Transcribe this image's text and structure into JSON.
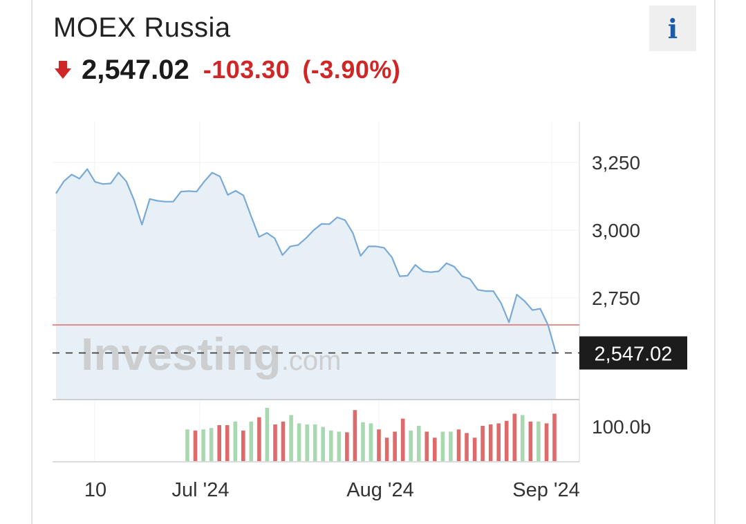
{
  "header": {
    "title": "MOEX Russia",
    "price": "2,547.02",
    "change": "-103.30",
    "change_pct": "(-3.90%)",
    "info_label": "i",
    "direction_icon": "arrow-down-icon"
  },
  "watermark": {
    "main": "Investing",
    "suffix": ".com"
  },
  "colors": {
    "down": "#cf2727",
    "line": "#7aaad4",
    "area": "#e7eff7",
    "volume_up": "#a8d8b0",
    "volume_down": "#de6b6b",
    "prev_close_line": "#e46868",
    "last_price_badge": "#1c1c1c"
  },
  "chart_data": {
    "type": "area",
    "title": "MOEX Russia",
    "x_ticks": [
      "10",
      "Jul '24",
      "Aug '24",
      "Sep '24"
    ],
    "y_ticks": [
      "3,250",
      "3,000",
      "2,750"
    ],
    "volume_tick": "100.0b",
    "last_price_label": "2,547.02",
    "last_price": 2547.02,
    "previous_close": 2650.32,
    "ylim": [
      2375,
      3400
    ],
    "grid": true,
    "series": [
      {
        "values": [
          3135,
          3180,
          3205,
          3190,
          3225,
          3178,
          3170,
          3172,
          3212,
          3180,
          3110,
          3020,
          3115,
          3108,
          3105,
          3105,
          3142,
          3144,
          3142,
          3180,
          3212,
          3198,
          3130,
          3145,
          3128,
          3050,
          2975,
          2990,
          2970,
          2908,
          2940,
          2945,
          2970,
          3000,
          3023,
          3022,
          3047,
          3037,
          2990,
          2905,
          2940,
          2940,
          2935,
          2900,
          2830,
          2832,
          2872,
          2848,
          2845,
          2848,
          2878,
          2865,
          2830,
          2820,
          2780,
          2775,
          2775,
          2730,
          2660,
          2762,
          2738,
          2705,
          2710,
          2650,
          2547
        ]
      }
    ],
    "volume": [
      {
        "dir": "up",
        "value": 0.88
      },
      {
        "dir": "down",
        "value": 0.85
      },
      {
        "dir": "up",
        "value": 0.88
      },
      {
        "dir": "up",
        "value": 0.92
      },
      {
        "dir": "down",
        "value": 1.0
      },
      {
        "dir": "down",
        "value": 1.0
      },
      {
        "dir": "up",
        "value": 1.1
      },
      {
        "dir": "down",
        "value": 0.85
      },
      {
        "dir": "up",
        "value": 1.1
      },
      {
        "dir": "down",
        "value": 1.22
      },
      {
        "dir": "up",
        "value": 1.48
      },
      {
        "dir": "down",
        "value": 1.02
      },
      {
        "dir": "down",
        "value": 1.1
      },
      {
        "dir": "up",
        "value": 1.28
      },
      {
        "dir": "up",
        "value": 1.05
      },
      {
        "dir": "up",
        "value": 1.02
      },
      {
        "dir": "up",
        "value": 1.02
      },
      {
        "dir": "up",
        "value": 0.95
      },
      {
        "dir": "up",
        "value": 0.85
      },
      {
        "dir": "up",
        "value": 0.82
      },
      {
        "dir": "down",
        "value": 0.8
      },
      {
        "dir": "down",
        "value": 1.42
      },
      {
        "dir": "up",
        "value": 1.08
      },
      {
        "dir": "up",
        "value": 1.05
      },
      {
        "dir": "down",
        "value": 0.88
      },
      {
        "dir": "down",
        "value": 0.65
      },
      {
        "dir": "down",
        "value": 0.82
      },
      {
        "dir": "down",
        "value": 1.18
      },
      {
        "dir": "up",
        "value": 0.85
      },
      {
        "dir": "up",
        "value": 0.98
      },
      {
        "dir": "down",
        "value": 0.82
      },
      {
        "dir": "down",
        "value": 0.65
      },
      {
        "dir": "up",
        "value": 0.82
      },
      {
        "dir": "up",
        "value": 0.82
      },
      {
        "dir": "down",
        "value": 0.88
      },
      {
        "dir": "down",
        "value": 0.78
      },
      {
        "dir": "down",
        "value": 0.65
      },
      {
        "dir": "down",
        "value": 0.98
      },
      {
        "dir": "down",
        "value": 1.02
      },
      {
        "dir": "down",
        "value": 1.05
      },
      {
        "dir": "down",
        "value": 1.12
      },
      {
        "dir": "down",
        "value": 1.32
      },
      {
        "dir": "up",
        "value": 1.28
      },
      {
        "dir": "down",
        "value": 1.1
      },
      {
        "dir": "up",
        "value": 1.1
      },
      {
        "dir": "down",
        "value": 1.05
      },
      {
        "dir": "down",
        "value": 1.32
      }
    ]
  }
}
